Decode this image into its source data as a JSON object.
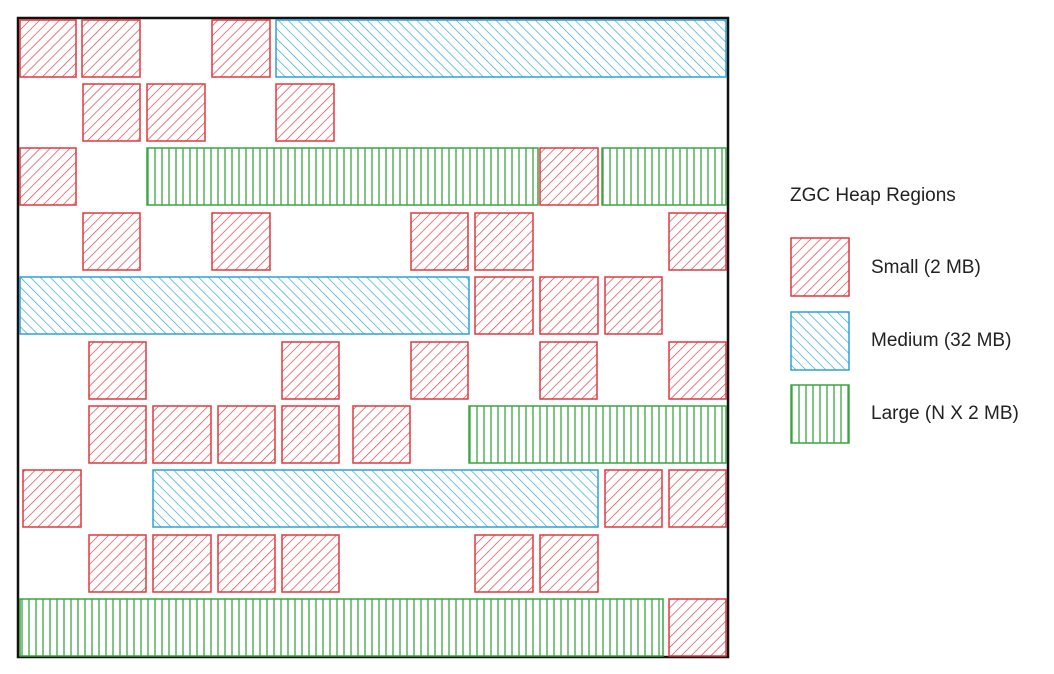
{
  "legend": {
    "title": "ZGC Heap Regions",
    "items": [
      {
        "label": "Small (2 MB)"
      },
      {
        "label": "Medium (32 MB)"
      },
      {
        "label": "Large (N X 2 MB)"
      }
    ]
  }
}
